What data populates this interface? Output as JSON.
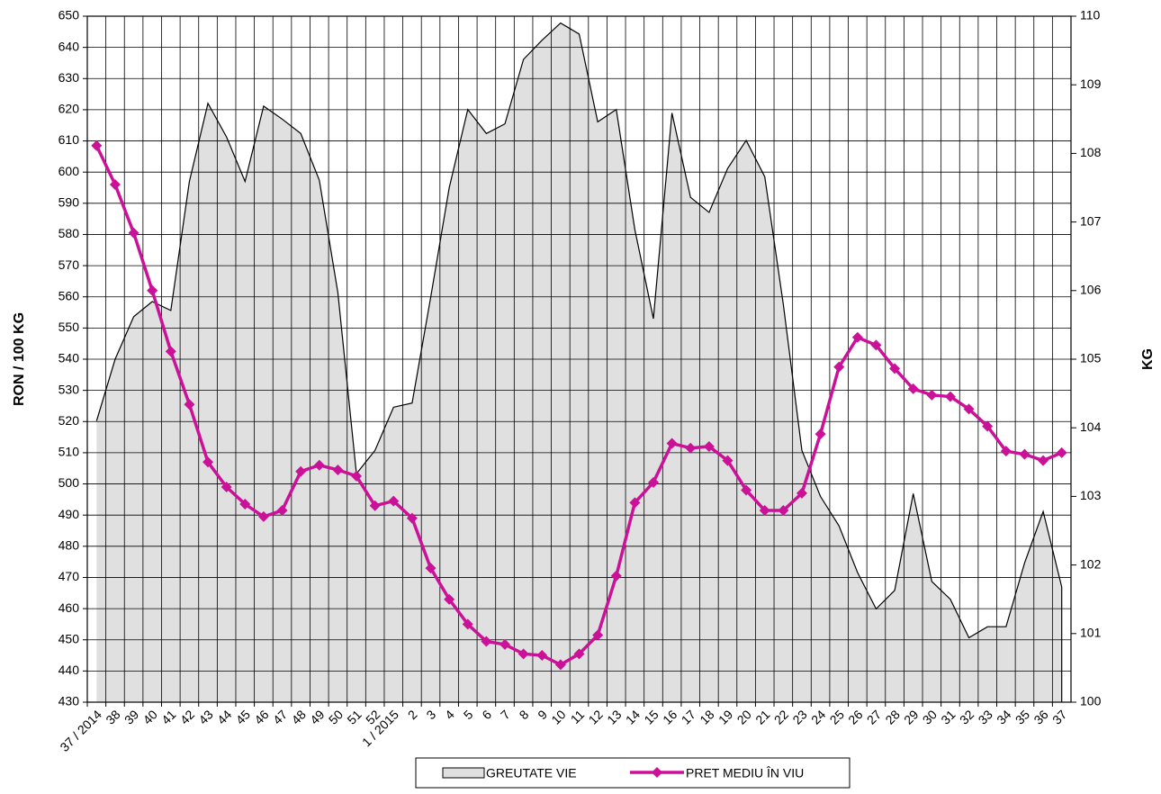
{
  "chart_data": {
    "type": "area-line",
    "y_label": "RON / 100 KG",
    "y2_label": "KG",
    "categories": [
      "37 / 2014",
      "38",
      "39",
      "40",
      "41",
      "42",
      "43",
      "44",
      "45",
      "46",
      "47",
      "48",
      "49",
      "50",
      "51",
      "52",
      "1 / 2015",
      "2",
      "3",
      "4",
      "5",
      "6",
      "7",
      "8",
      "9",
      "10",
      "11",
      "12",
      "13",
      "14",
      "15",
      "16",
      "17",
      "18",
      "19",
      "20",
      "21",
      "22",
      "23",
      "24",
      "25",
      "26",
      "27",
      "28",
      "29",
      "30",
      "31",
      "32",
      "33",
      "34",
      "35",
      "36",
      "37"
    ],
    "series": [
      {
        "name": "GREUTATE  VIE",
        "type": "area",
        "axis": "y2",
        "color": "#e0e0e0",
        "values": [
          104.1,
          105.0,
          105.62,
          105.84,
          105.71,
          107.59,
          108.73,
          108.24,
          107.59,
          108.69,
          108.5,
          108.29,
          107.61,
          105.97,
          103.33,
          103.67,
          104.3,
          104.36,
          105.9,
          107.5,
          108.64,
          108.29,
          108.43,
          109.37,
          109.65,
          109.9,
          109.74,
          108.46,
          108.64,
          106.89,
          105.59,
          108.59,
          107.36,
          107.14,
          107.78,
          108.19,
          107.66,
          105.8,
          103.67,
          103.0,
          102.57,
          101.89,
          101.36,
          101.63,
          103.04,
          101.76,
          101.5,
          100.94,
          101.1,
          101.1,
          102.03,
          102.78,
          101.68
        ]
      },
      {
        "name": "PRET MEDIU ÎN VIU",
        "type": "line",
        "axis": "y",
        "color": "#cc1199",
        "values": [
          608.5,
          596,
          580.5,
          562,
          542.5,
          525.5,
          507,
          499,
          493.5,
          489.5,
          491.5,
          504,
          506,
          504.5,
          502.5,
          493,
          494.5,
          489,
          473,
          463,
          455,
          449.5,
          448.5,
          445.5,
          445,
          442,
          445.5,
          451.5,
          470.5,
          494,
          500.5,
          513,
          511.5,
          512,
          507.5,
          498,
          491.5,
          491.5,
          497,
          516,
          537.5,
          547,
          544.5,
          537,
          530.5,
          528.5,
          528,
          524,
          518.5,
          510.5,
          509.5,
          507.5,
          510
        ]
      }
    ],
    "ylim": [
      430,
      650
    ],
    "yticks": [
      430,
      440,
      450,
      460,
      470,
      480,
      490,
      500,
      510,
      520,
      530,
      540,
      550,
      560,
      570,
      580,
      590,
      600,
      610,
      620,
      630,
      640,
      650
    ],
    "y2lim": [
      100,
      110
    ],
    "y2ticks": [
      100,
      101,
      102,
      103,
      104,
      105,
      106,
      107,
      108,
      109,
      110
    ],
    "grid": true,
    "legend": "bottom"
  }
}
